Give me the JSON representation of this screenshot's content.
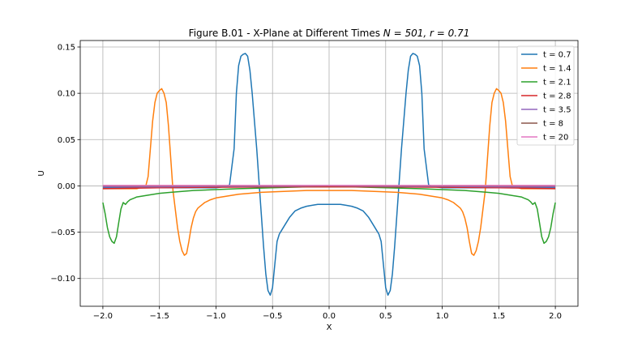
{
  "chart_data": {
    "type": "line",
    "title": "Figure B.01 - X-Plane at Different Times ",
    "title_math": "N = 501, r = 0.71",
    "xlabel": "X",
    "ylabel": "U",
    "xlim": [
      -2.2,
      2.2
    ],
    "ylim": [
      -0.13,
      0.157
    ],
    "x_ticks": [
      -2.0,
      -1.5,
      -1.0,
      -0.5,
      0.0,
      0.5,
      1.0,
      1.5,
      2.0
    ],
    "x_tick_labels": [
      "−2.0",
      "−1.5",
      "−1.0",
      "−0.5",
      "0.0",
      "0.5",
      "1.0",
      "1.5",
      "2.0"
    ],
    "y_ticks": [
      -0.1,
      -0.05,
      0.0,
      0.05,
      0.1,
      0.15
    ],
    "y_tick_labels": [
      "−0.10",
      "−0.05",
      "0.00",
      "0.05",
      "0.10",
      "0.15"
    ],
    "grid": true,
    "legend_position": "top-right",
    "series": [
      {
        "name": "t = 0.7",
        "color": "#1f77b4",
        "x": [
          -2.0,
          -1.5,
          -1.0,
          -0.94,
          -0.88,
          -0.84,
          -0.82,
          -0.8,
          -0.78,
          -0.76,
          -0.74,
          -0.72,
          -0.7,
          -0.68,
          -0.66,
          -0.64,
          -0.62,
          -0.6,
          -0.58,
          -0.56,
          -0.54,
          -0.52,
          -0.5,
          -0.48,
          -0.46,
          -0.44,
          -0.42,
          -0.4,
          -0.35,
          -0.3,
          -0.25,
          -0.2,
          -0.15,
          -0.1,
          -0.05,
          0.0,
          0.05,
          0.1,
          0.15,
          0.2,
          0.25,
          0.3,
          0.35,
          0.4,
          0.42,
          0.44,
          0.46,
          0.48,
          0.5,
          0.52,
          0.54,
          0.56,
          0.58,
          0.6,
          0.62,
          0.64,
          0.66,
          0.68,
          0.7,
          0.72,
          0.74,
          0.76,
          0.78,
          0.8,
          0.82,
          0.84,
          0.88,
          0.94,
          1.0,
          1.5,
          2.0
        ],
        "y": [
          -0.002,
          -0.002,
          -0.002,
          -0.001,
          0.001,
          0.04,
          0.1,
          0.13,
          0.14,
          0.142,
          0.143,
          0.14,
          0.125,
          0.1,
          0.07,
          0.04,
          0.005,
          -0.03,
          -0.065,
          -0.095,
          -0.113,
          -0.118,
          -0.11,
          -0.085,
          -0.06,
          -0.052,
          -0.048,
          -0.044,
          -0.034,
          -0.027,
          -0.024,
          -0.022,
          -0.021,
          -0.02,
          -0.02,
          -0.02,
          -0.02,
          -0.02,
          -0.021,
          -0.022,
          -0.024,
          -0.027,
          -0.034,
          -0.044,
          -0.048,
          -0.052,
          -0.06,
          -0.085,
          -0.11,
          -0.118,
          -0.113,
          -0.095,
          -0.065,
          -0.03,
          0.005,
          0.04,
          0.07,
          0.1,
          0.125,
          0.14,
          0.143,
          0.142,
          0.14,
          0.13,
          0.1,
          0.04,
          0.001,
          -0.001,
          -0.002,
          -0.002,
          -0.002
        ]
      },
      {
        "name": "t = 1.4",
        "color": "#ff7f0e",
        "x": [
          -2.0,
          -1.7,
          -1.62,
          -1.6,
          -1.58,
          -1.56,
          -1.54,
          -1.52,
          -1.5,
          -1.48,
          -1.46,
          -1.44,
          -1.42,
          -1.4,
          -1.38,
          -1.36,
          -1.34,
          -1.32,
          -1.3,
          -1.28,
          -1.26,
          -1.24,
          -1.22,
          -1.2,
          -1.18,
          -1.16,
          -1.14,
          -1.12,
          -1.1,
          -1.05,
          -1.0,
          -0.9,
          -0.8,
          -0.6,
          -0.4,
          -0.2,
          0.0,
          0.2,
          0.4,
          0.6,
          0.8,
          0.9,
          1.0,
          1.05,
          1.1,
          1.12,
          1.14,
          1.16,
          1.18,
          1.2,
          1.22,
          1.24,
          1.26,
          1.28,
          1.3,
          1.32,
          1.34,
          1.36,
          1.38,
          1.4,
          1.42,
          1.44,
          1.46,
          1.48,
          1.5,
          1.52,
          1.54,
          1.56,
          1.58,
          1.6,
          1.62,
          1.7,
          2.0
        ],
        "y": [
          -0.003,
          -0.003,
          0.0,
          0.01,
          0.04,
          0.07,
          0.09,
          0.1,
          0.103,
          0.105,
          0.1,
          0.09,
          0.065,
          0.03,
          -0.005,
          -0.025,
          -0.045,
          -0.06,
          -0.07,
          -0.075,
          -0.073,
          -0.06,
          -0.045,
          -0.035,
          -0.028,
          -0.024,
          -0.022,
          -0.02,
          -0.018,
          -0.015,
          -0.013,
          -0.011,
          -0.009,
          -0.007,
          -0.006,
          -0.005,
          -0.005,
          -0.005,
          -0.006,
          -0.007,
          -0.009,
          -0.011,
          -0.013,
          -0.015,
          -0.018,
          -0.02,
          -0.022,
          -0.024,
          -0.028,
          -0.035,
          -0.045,
          -0.06,
          -0.073,
          -0.075,
          -0.07,
          -0.06,
          -0.045,
          -0.025,
          -0.005,
          0.03,
          0.065,
          0.09,
          0.1,
          0.105,
          0.103,
          0.1,
          0.09,
          0.07,
          0.04,
          0.01,
          0.0,
          -0.003,
          -0.003
        ]
      },
      {
        "name": "t = 2.1",
        "color": "#2ca02c",
        "x": [
          -2.0,
          -1.98,
          -1.96,
          -1.94,
          -1.92,
          -1.9,
          -1.88,
          -1.86,
          -1.84,
          -1.82,
          -1.8,
          -1.78,
          -1.76,
          -1.74,
          -1.72,
          -1.7,
          -1.65,
          -1.6,
          -1.5,
          -1.4,
          -1.3,
          -1.2,
          -1.0,
          -0.8,
          -0.5,
          -0.2,
          0.0,
          0.2,
          0.5,
          0.8,
          1.0,
          1.2,
          1.3,
          1.4,
          1.5,
          1.6,
          1.65,
          1.7,
          1.72,
          1.74,
          1.76,
          1.78,
          1.8,
          1.82,
          1.84,
          1.86,
          1.88,
          1.9,
          1.92,
          1.94,
          1.96,
          1.98,
          2.0
        ],
        "y": [
          -0.018,
          -0.03,
          -0.045,
          -0.055,
          -0.06,
          -0.062,
          -0.055,
          -0.04,
          -0.025,
          -0.018,
          -0.02,
          -0.017,
          -0.015,
          -0.014,
          -0.013,
          -0.012,
          -0.011,
          -0.01,
          -0.008,
          -0.007,
          -0.006,
          -0.005,
          -0.004,
          -0.003,
          -0.002,
          -0.001,
          -0.001,
          -0.001,
          -0.002,
          -0.003,
          -0.004,
          -0.005,
          -0.006,
          -0.007,
          -0.008,
          -0.01,
          -0.011,
          -0.012,
          -0.013,
          -0.014,
          -0.015,
          -0.017,
          -0.02,
          -0.018,
          -0.025,
          -0.04,
          -0.055,
          -0.062,
          -0.06,
          -0.055,
          -0.045,
          -0.03,
          -0.018
        ]
      },
      {
        "name": "t = 2.8",
        "color": "#d62728",
        "x": [
          -2.0,
          -1.5,
          -1.0,
          -0.5,
          0.0,
          0.5,
          1.0,
          1.5,
          2.0
        ],
        "y": [
          -0.003,
          -0.002,
          -0.0015,
          -0.001,
          -0.001,
          -0.001,
          -0.0015,
          -0.002,
          -0.003
        ]
      },
      {
        "name": "t = 3.5",
        "color": "#9467bd",
        "x": [
          -2.0,
          -1.5,
          -1.0,
          -0.5,
          0.0,
          0.5,
          1.0,
          1.5,
          2.0
        ],
        "y": [
          -0.001,
          -0.001,
          -0.0005,
          -0.0005,
          0.0,
          -0.0005,
          -0.0005,
          -0.001,
          -0.001
        ]
      },
      {
        "name": "t = 8",
        "color": "#8c564b",
        "x": [
          -2.0,
          -1.0,
          0.0,
          1.0,
          2.0
        ],
        "y": [
          0.0,
          0.0,
          0.0,
          0.0,
          0.0
        ]
      },
      {
        "name": "t = 20",
        "color": "#e377c2",
        "x": [
          -2.0,
          -1.0,
          0.0,
          1.0,
          2.0
        ],
        "y": [
          0.0005,
          0.0005,
          0.0005,
          0.0005,
          0.0005
        ]
      }
    ]
  }
}
